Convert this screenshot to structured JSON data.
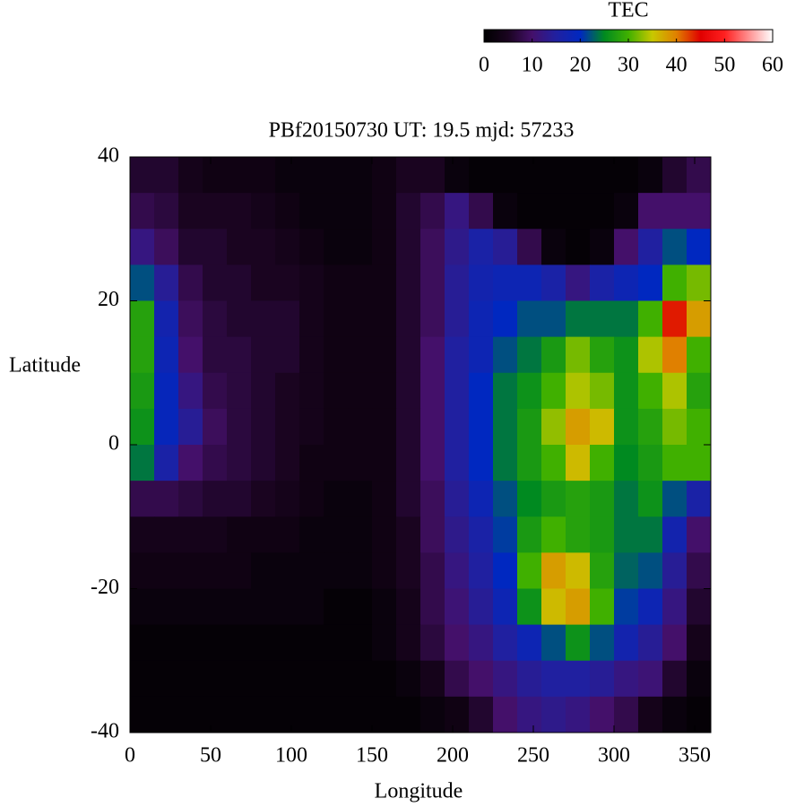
{
  "chart_data": {
    "type": "heatmap",
    "title": "PBf20150730  UT: 19.5  mjd: 57233",
    "x_label": "Longitude",
    "y_label": "Latitude",
    "colorbar_label": "TEC",
    "xlim": [
      0,
      360
    ],
    "ylim": [
      -40,
      40
    ],
    "xticks": [
      0,
      50,
      100,
      150,
      200,
      250,
      300,
      350
    ],
    "yticks": [
      -40,
      -20,
      0,
      20,
      40
    ],
    "clim": [
      0,
      60
    ],
    "cticks": [
      0,
      10,
      20,
      30,
      40,
      50,
      60
    ],
    "colorscale": [
      [
        0,
        "#000000"
      ],
      [
        5,
        "#1a0420"
      ],
      [
        10,
        "#44106a"
      ],
      [
        15,
        "#2020a0"
      ],
      [
        20,
        "#0028c0"
      ],
      [
        25,
        "#008a20"
      ],
      [
        30,
        "#40b000"
      ],
      [
        35,
        "#c8c800"
      ],
      [
        40,
        "#e08000"
      ],
      [
        45,
        "#e00000"
      ],
      [
        50,
        "#ff2020"
      ],
      [
        60,
        "#ffffff"
      ]
    ],
    "x": [
      7.5,
      22.5,
      37.5,
      52.5,
      67.5,
      82.5,
      97.5,
      112.5,
      127.5,
      142.5,
      157.5,
      172.5,
      187.5,
      202.5,
      217.5,
      232.5,
      247.5,
      262.5,
      277.5,
      292.5,
      307.5,
      322.5,
      337.5,
      352.5
    ],
    "y": [
      37.5,
      32.5,
      27.5,
      22.5,
      17.5,
      12.5,
      7.5,
      2.5,
      -2.5,
      -7.5,
      -12.5,
      -17.5,
      -22.5,
      -27.5,
      -32.5,
      -37.5
    ],
    "values": [
      [
        6,
        6,
        4,
        3,
        3,
        3,
        2,
        2,
        2,
        2,
        3,
        5,
        5,
        2,
        1,
        1,
        1,
        1,
        1,
        1,
        1,
        2,
        6,
        8
      ],
      [
        8,
        7,
        5,
        5,
        5,
        4,
        3,
        2,
        2,
        2,
        3,
        6,
        8,
        12,
        8,
        2,
        1,
        1,
        1,
        1,
        2,
        10,
        10,
        10
      ],
      [
        12,
        9,
        6,
        6,
        5,
        5,
        4,
        3,
        2,
        2,
        3,
        6,
        9,
        13,
        16,
        14,
        8,
        2,
        1,
        2,
        10,
        15,
        22,
        20
      ],
      [
        22,
        14,
        8,
        6,
        6,
        5,
        5,
        4,
        3,
        3,
        3,
        6,
        9,
        14,
        17,
        18,
        18,
        16,
        12,
        16,
        18,
        20,
        30,
        32
      ],
      [
        28,
        17,
        9,
        7,
        6,
        6,
        6,
        4,
        3,
        3,
        3,
        6,
        9,
        14,
        18,
        20,
        22,
        22,
        24,
        24,
        24,
        30,
        44,
        38
      ],
      [
        28,
        18,
        10,
        7,
        7,
        6,
        6,
        4,
        3,
        3,
        3,
        6,
        10,
        15,
        18,
        22,
        24,
        27,
        32,
        28,
        26,
        34,
        40,
        30
      ],
      [
        27,
        19,
        12,
        8,
        7,
        6,
        5,
        4,
        3,
        3,
        3,
        6,
        10,
        15,
        20,
        24,
        26,
        30,
        34,
        32,
        26,
        30,
        34,
        28
      ],
      [
        26,
        19,
        14,
        9,
        7,
        6,
        5,
        4,
        3,
        3,
        3,
        6,
        10,
        15,
        20,
        24,
        27,
        33,
        38,
        36,
        26,
        28,
        32,
        30
      ],
      [
        24,
        16,
        10,
        8,
        7,
        6,
        5,
        3,
        3,
        3,
        3,
        6,
        10,
        15,
        20,
        24,
        27,
        30,
        36,
        30,
        25,
        27,
        30,
        30
      ],
      [
        8,
        8,
        7,
        6,
        6,
        5,
        4,
        3,
        2,
        2,
        3,
        6,
        9,
        14,
        18,
        22,
        25,
        27,
        28,
        27,
        24,
        26,
        22,
        16
      ],
      [
        4,
        4,
        4,
        4,
        3,
        3,
        3,
        2,
        2,
        2,
        3,
        5,
        9,
        13,
        16,
        21,
        27,
        30,
        28,
        27,
        24,
        24,
        17,
        10
      ],
      [
        3,
        3,
        3,
        3,
        3,
        2,
        2,
        2,
        2,
        2,
        3,
        5,
        8,
        12,
        15,
        20,
        30,
        38,
        36,
        28,
        23,
        22,
        14,
        8
      ],
      [
        2,
        2,
        2,
        2,
        2,
        2,
        2,
        2,
        1,
        1,
        2,
        4,
        8,
        11,
        14,
        18,
        26,
        36,
        38,
        30,
        21,
        18,
        12,
        6
      ],
      [
        1,
        1,
        1,
        1,
        1,
        1,
        1,
        1,
        1,
        1,
        2,
        4,
        7,
        10,
        12,
        15,
        18,
        22,
        26,
        22,
        17,
        14,
        10,
        4
      ],
      [
        1,
        1,
        1,
        1,
        1,
        1,
        1,
        1,
        1,
        1,
        1,
        2,
        4,
        8,
        10,
        12,
        14,
        15,
        15,
        14,
        12,
        11,
        6,
        2
      ],
      [
        1,
        1,
        1,
        1,
        1,
        1,
        1,
        1,
        1,
        1,
        1,
        1,
        2,
        3,
        6,
        10,
        12,
        13,
        12,
        10,
        8,
        4,
        2,
        1
      ]
    ]
  }
}
